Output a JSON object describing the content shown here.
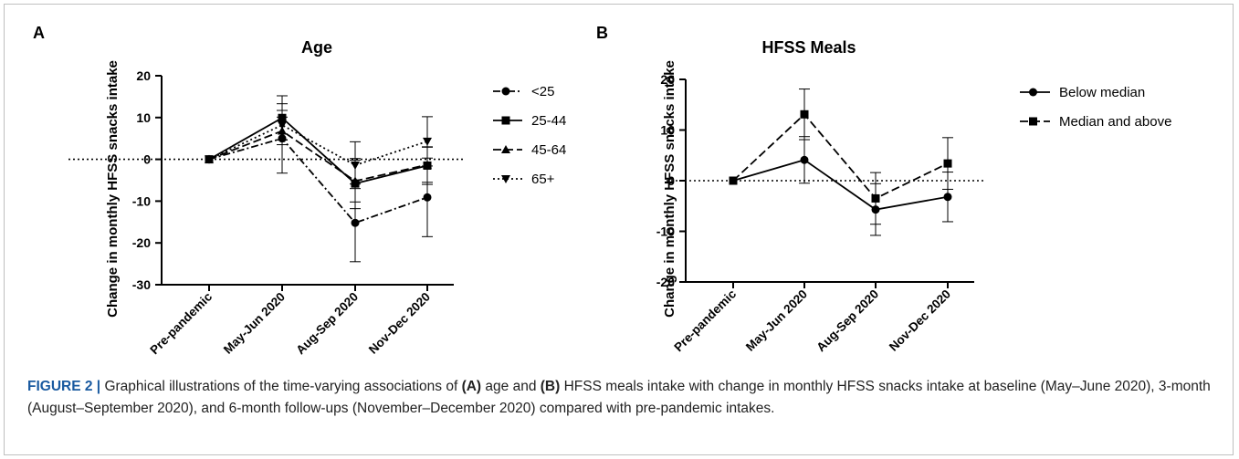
{
  "figure": {
    "caption": {
      "label": "FIGURE 2 |",
      "t1": " Graphical illustrations of the time-varying associations of ",
      "b1": "(A)",
      "t2": " age and ",
      "b2": "(B)",
      "t3": " HFSS meals intake with change in monthly HFSS snacks intake at baseline (May–June 2020), 3-month (August–September 2020), and 6-month follow-ups (November–December 2020) compared with pre-pandemic intakes."
    }
  },
  "chart_data": [
    {
      "type": "line",
      "panel_label": "A",
      "title": "Age",
      "xlabel": "",
      "ylabel": "Change in monthly HFSS snacks intake",
      "categories": [
        "Pre-pandemic",
        "May-Jun 2020",
        "Aug-Sep 2020",
        "Nov-Dec 2020"
      ],
      "ylim": [
        -30,
        20
      ],
      "yticks": [
        20,
        10,
        0,
        -10,
        -20,
        -30
      ],
      "reference_line": 0,
      "legend_position": "right",
      "series": [
        {
          "name": "<25",
          "marker": "circle",
          "dash": "8 3 2 3",
          "values": [
            0,
            5,
            -15.2,
            -9.1
          ],
          "err": [
            0,
            8.3,
            9.3,
            9.4
          ]
        },
        {
          "name": "25-44",
          "marker": "square",
          "dash": "",
          "values": [
            0,
            9.9,
            -5.8,
            -1.5
          ],
          "err": [
            0,
            5.3,
            6.0,
            4.5
          ]
        },
        {
          "name": "45-64",
          "marker": "triangle-up",
          "dash": "9 4",
          "values": [
            0,
            6.8,
            -5.2,
            -1.3
          ],
          "err": [
            0,
            3.3,
            5.0,
            4.2
          ]
        },
        {
          "name": "65+",
          "marker": "triangle-down",
          "dash": "2 3",
          "values": [
            0,
            8.2,
            -1.4,
            4.3
          ],
          "err": [
            0,
            3.5,
            5.6,
            5.9
          ]
        }
      ]
    },
    {
      "type": "line",
      "panel_label": "B",
      "title": "HFSS Meals",
      "xlabel": "",
      "ylabel": "Change in monthly HFSS snacks intake",
      "categories": [
        "Pre-pandemic",
        "May-Jun 2020",
        "Aug-Sep 2020",
        "Nov-Dec 2020"
      ],
      "ylim": [
        -20,
        20
      ],
      "yticks": [
        20,
        10,
        0,
        -10,
        -20
      ],
      "reference_line": 0,
      "legend_position": "right",
      "series": [
        {
          "name": "Below median",
          "marker": "circle",
          "dash": "",
          "values": [
            0,
            4.1,
            -5.7,
            -3.2
          ],
          "err": [
            0,
            4.6,
            5.1,
            4.9
          ]
        },
        {
          "name": "Median and above",
          "marker": "square",
          "dash": "9 4",
          "values": [
            0,
            13.1,
            -3.5,
            3.4
          ],
          "err": [
            0,
            5.0,
            5.1,
            5.1
          ]
        }
      ]
    }
  ]
}
